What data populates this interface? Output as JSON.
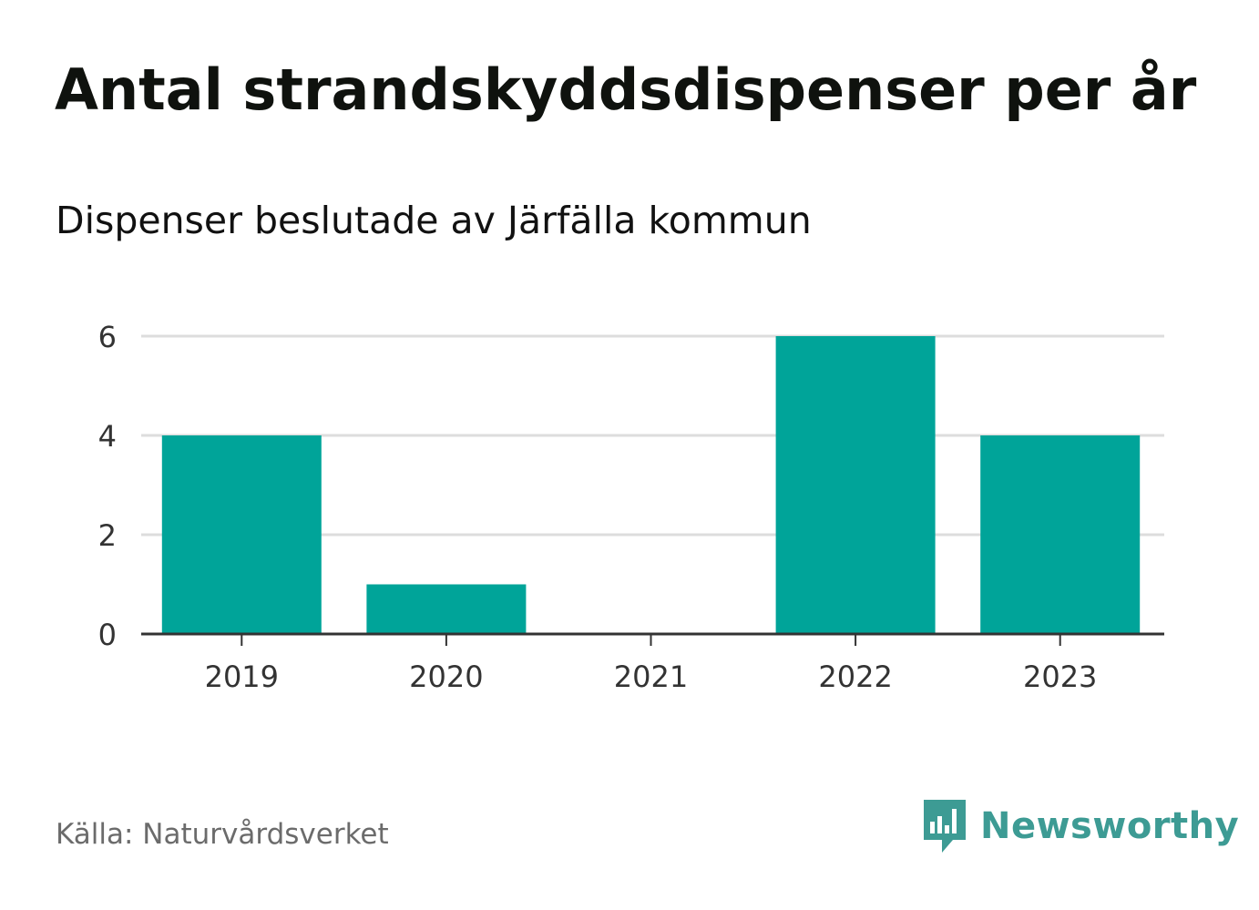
{
  "header": {
    "title": "Antal strandskyddsdispenser per år",
    "subtitle": "Dispenser beslutade av Järfälla kommun"
  },
  "footer": {
    "source": "Källa: Naturvårdsverket",
    "brand": "Newsworthy",
    "brand_color": "#3d9b94",
    "brand_icon": "bar-chart-speech-bubble-icon"
  },
  "chart_data": {
    "type": "bar",
    "title": "Antal strandskyddsdispenser per år",
    "subtitle": "Dispenser beslutade av Järfälla kommun",
    "categories": [
      "2019",
      "2020",
      "2021",
      "2022",
      "2023"
    ],
    "values": [
      4,
      1,
      0,
      6,
      4
    ],
    "xlabel": "",
    "ylabel": "",
    "ylim": [
      0,
      6
    ],
    "yticks": [
      0,
      2,
      4,
      6
    ],
    "ytick_labels": [
      "0",
      "2",
      "4",
      "6"
    ],
    "grid": true,
    "bar_color": "#00a499",
    "grid_color": "#dddddd",
    "axis_color": "#333333"
  }
}
